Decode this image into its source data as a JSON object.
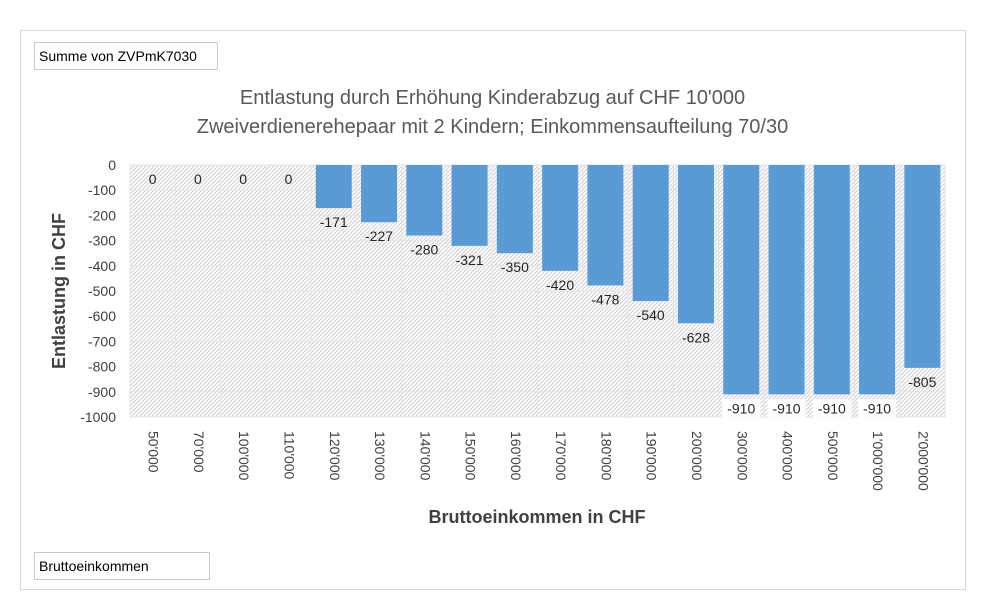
{
  "pivot": {
    "value_field": "Summe von ZVPmK7030",
    "row_field": "Bruttoeinkommen"
  },
  "chart_data": {
    "type": "bar",
    "title": "Entlastung durch Erhöhung Kinderabzug auf CHF 10'000",
    "subtitle": "Zweiverdienerehepaar mit 2 Kindern; Einkommensaufteilung 70/30",
    "xlabel": "Bruttoeinkommen in CHF",
    "ylabel": "Entlastung in CHF",
    "categories": [
      "50'000",
      "70'000",
      "100'000",
      "110'000",
      "120'000",
      "130'000",
      "140'000",
      "150'000",
      "160'000",
      "170'000",
      "180'000",
      "190'000",
      "200'000",
      "300'000",
      "400'000",
      "500'000",
      "1'000'000",
      "2'000'000"
    ],
    "values": [
      0,
      0,
      0,
      0,
      -171,
      -227,
      -280,
      -321,
      -350,
      -420,
      -478,
      -540,
      -628,
      -910,
      -910,
      -910,
      -910,
      -805
    ],
    "ylim": [
      -1000,
      0
    ],
    "yticks": [
      0,
      -100,
      -200,
      -300,
      -400,
      -500,
      -600,
      -700,
      -800,
      -900,
      -1000
    ],
    "bar_color": "#5b9bd5",
    "grid": true,
    "legend": "none"
  }
}
